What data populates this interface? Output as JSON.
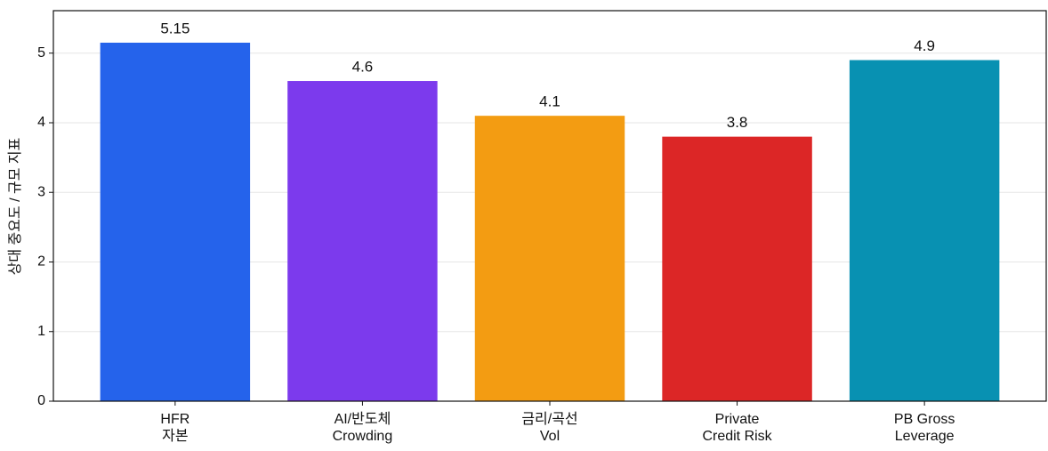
{
  "chart_data": {
    "type": "bar",
    "ylabel": "상대 중요도 / 규모 지표",
    "categories": [
      [
        "HFR",
        "자본"
      ],
      [
        "AI/반도체",
        "Crowding"
      ],
      [
        "금리/곡선",
        "Vol"
      ],
      [
        "Private",
        "Credit Risk"
      ],
      [
        "PB Gross",
        "Leverage"
      ]
    ],
    "values": [
      5.15,
      4.6,
      4.1,
      3.8,
      4.9
    ],
    "colors": [
      "#2563eb",
      "#7c3aed",
      "#f39c12",
      "#dc2626",
      "#0891b2"
    ],
    "ylim": [
      0,
      5.61
    ],
    "yticks": [
      0,
      1,
      2,
      3,
      4,
      5
    ],
    "grid": true
  }
}
